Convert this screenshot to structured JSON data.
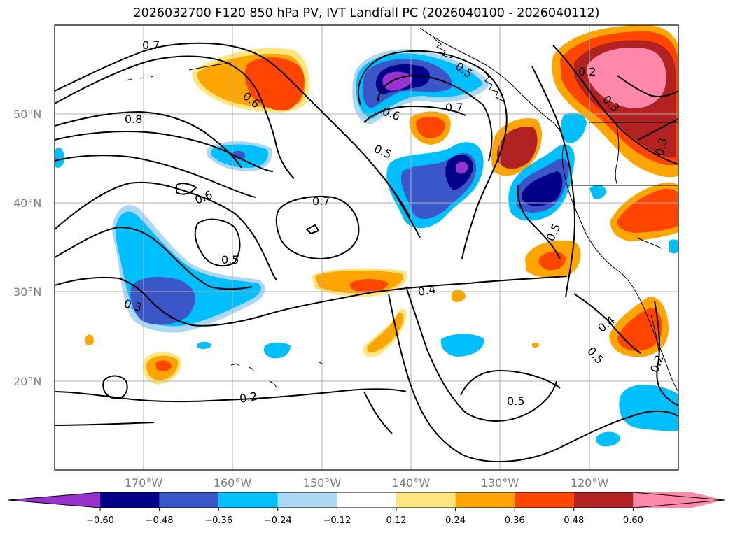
{
  "title": "2026032700 F120 850 hPa PV, IVT Landfall PC (2026040100 - 2026040112)",
  "lat_labels": [
    "50°N",
    "40°N",
    "30°N",
    "20°N"
  ],
  "lon_labels": [
    "170°W",
    "160°W",
    "150°W",
    "140°W",
    "130°W",
    "120°W"
  ],
  "colorbar": {
    "colors": [
      "#9932cc",
      "#00008b",
      "#3a56c8",
      "#00bfff",
      "#add8f5",
      "#ffffff",
      "#ffe680",
      "#ffa500",
      "#ff4500",
      "#b22222",
      "#ff88aa"
    ],
    "tick_labels": [
      "−0.60",
      "−0.48",
      "−0.36",
      "−0.24",
      "−0.12",
      "0.12",
      "0.24",
      "0.36",
      "0.48",
      "0.60"
    ]
  },
  "contour_labels": [
    "0.7",
    "0.6",
    "0.8",
    "0.6",
    "0.7",
    "0.5",
    "0.3",
    "0.2",
    "0.5",
    "0.6",
    "0.7",
    "0.5",
    "0.4",
    "0.5",
    "0.5",
    "0.4",
    "0.5",
    "0.2",
    "0.2",
    "0.3",
    "0.3"
  ],
  "colors": {
    "grid": "#b0b0b0",
    "contour": "#000000",
    "coast": "#000000"
  }
}
